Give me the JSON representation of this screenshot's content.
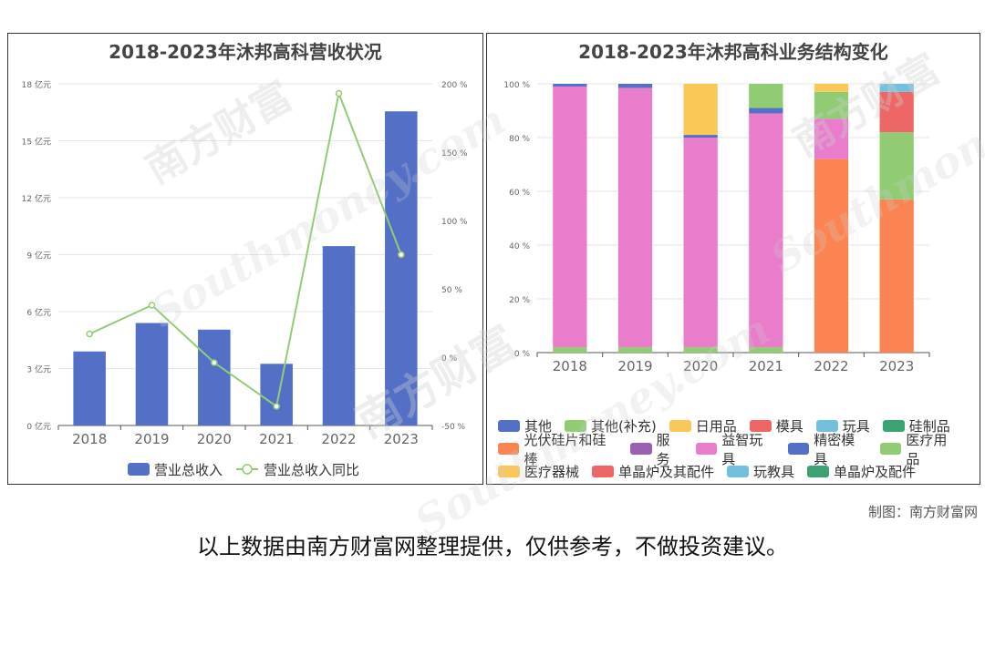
{
  "credit": "制图：南方财富网",
  "disclaimer": "以上数据由南方财富网整理提供，仅供参考，不做投资建议。",
  "watermark": {
    "cn": "南方财富",
    "en": "Southmoney.com"
  },
  "chart_data": [
    {
      "type": "bar",
      "title": "2018-2023年沐邦高科营收状况",
      "categories": [
        "2018",
        "2019",
        "2020",
        "2021",
        "2022",
        "2023"
      ],
      "series": [
        {
          "name": "营业总收入",
          "type": "bar",
          "axis": "left",
          "color": "#5470c6",
          "values": [
            3.9,
            5.4,
            5.05,
            3.25,
            9.45,
            16.55
          ]
        },
        {
          "name": "营业总收入同比",
          "type": "line",
          "axis": "right",
          "color": "#91cc75",
          "values": [
            17,
            38,
            -4,
            -36,
            193,
            75
          ]
        }
      ],
      "y_left": {
        "min": 0,
        "max": 18,
        "ticks": [
          0,
          3,
          6,
          9,
          12,
          15,
          18
        ],
        "tick_labels": [
          "0 亿元",
          "3 亿元",
          "6 亿元",
          "9 亿元",
          "12 亿元",
          "15 亿元",
          "18 亿元"
        ]
      },
      "y_right": {
        "min": -50,
        "max": 200,
        "ticks": [
          -50,
          0,
          50,
          100,
          150,
          200
        ],
        "tick_labels": [
          "-50 %",
          "0 %",
          "50 %",
          "100 %",
          "150 %",
          "200 %"
        ]
      },
      "grid": true,
      "legend_position": "bottom"
    },
    {
      "type": "bar",
      "stacked": true,
      "title": "2018-2023年沐邦高科业务结构变化",
      "categories": [
        "2018",
        "2019",
        "2020",
        "2021",
        "2022",
        "2023"
      ],
      "y": {
        "min": 0,
        "max": 100,
        "ticks": [
          0,
          20,
          40,
          60,
          80,
          100
        ],
        "tick_labels": [
          "0 %",
          "20 %",
          "40 %",
          "60 %",
          "80 %",
          "100 %"
        ]
      },
      "grid": true,
      "legend_position": "bottom",
      "series": [
        {
          "name": "其他",
          "color": "#5470c6",
          "values": [
            0,
            0,
            0,
            0,
            0,
            0
          ]
        },
        {
          "name": "其他(补充)",
          "color": "#91cc75",
          "values": [
            2,
            2,
            2,
            2,
            0,
            0
          ]
        },
        {
          "name": "日用品",
          "color": "#fac858",
          "values": [
            0,
            0,
            0,
            0,
            0,
            0
          ]
        },
        {
          "name": "模具",
          "color": "#ee6666",
          "values": [
            0,
            0,
            0,
            0,
            0,
            0
          ]
        },
        {
          "name": "玩具",
          "color": "#73c0de",
          "values": [
            0,
            0,
            0,
            0,
            0,
            0
          ]
        },
        {
          "name": "硅制品",
          "color": "#3ba272",
          "values": [
            0,
            0,
            0,
            0,
            0,
            0
          ]
        },
        {
          "name": "光伏硅片和硅棒",
          "color": "#fc8452",
          "values": [
            0,
            0,
            0,
            0,
            72,
            57
          ]
        },
        {
          "name": "服务",
          "color": "#9a60b4",
          "values": [
            0,
            0,
            0,
            0,
            0,
            0
          ]
        },
        {
          "name": "益智玩具",
          "color": "#ea7ccc",
          "values": [
            97,
            96.5,
            78,
            87,
            15,
            0
          ]
        },
        {
          "name": "精密模具",
          "color": "#5470c6",
          "values": [
            1,
            1.5,
            1,
            2,
            0,
            0
          ]
        },
        {
          "name": "医疗用品",
          "color": "#91cc75",
          "values": [
            0,
            0,
            0,
            9,
            10,
            25
          ]
        },
        {
          "name": "医疗器械",
          "color": "#fac858",
          "values": [
            0,
            0,
            19,
            0,
            3,
            0
          ]
        },
        {
          "name": "单晶炉及其配件",
          "color": "#ee6666",
          "values": [
            0,
            0,
            0,
            0,
            0,
            15
          ]
        },
        {
          "name": "玩教具",
          "color": "#73c0de",
          "values": [
            0,
            0,
            0,
            0,
            0,
            3
          ]
        },
        {
          "name": "单晶炉及配件",
          "color": "#3ba272",
          "values": [
            0,
            0,
            0,
            0,
            0,
            0
          ]
        }
      ]
    }
  ]
}
